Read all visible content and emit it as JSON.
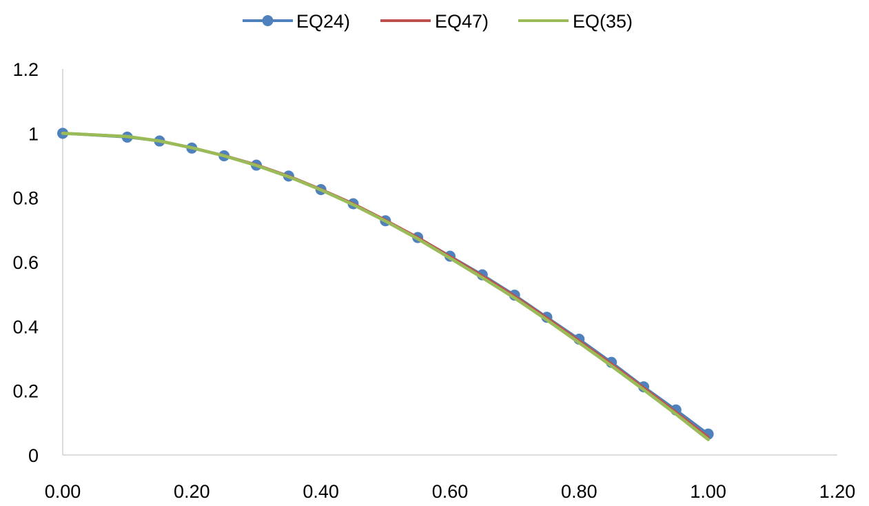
{
  "chart_data": {
    "type": "line",
    "title": "",
    "xlabel": "",
    "ylabel": "",
    "xlim": [
      0,
      1.2
    ],
    "ylim": [
      0,
      1.2
    ],
    "x_ticks": [
      0,
      0.2,
      0.4,
      0.6,
      0.8,
      1.0,
      1.2
    ],
    "x_tick_labels": [
      "0.00",
      "0.20",
      "0.40",
      "0.60",
      "0.80",
      "1.00",
      "1.20"
    ],
    "y_ticks": [
      0,
      0.2,
      0.4,
      0.6,
      0.8,
      1.0,
      1.2
    ],
    "y_tick_labels": [
      "0",
      "0.2",
      "0.4",
      "0.6",
      "0.8",
      "1",
      "1.2"
    ],
    "grid": false,
    "legend_position": "top-center",
    "series": [
      {
        "name": "EQ24)",
        "color": "#4F81BD",
        "marker": "circle",
        "x": [
          0.0,
          0.1,
          0.15,
          0.2,
          0.25,
          0.3,
          0.35,
          0.4,
          0.45,
          0.5,
          0.55,
          0.6,
          0.65,
          0.7,
          0.75,
          0.8,
          0.85,
          0.9,
          0.95,
          1.0
        ],
        "y": [
          1.0,
          0.988,
          0.976,
          0.954,
          0.93,
          0.901,
          0.867,
          0.825,
          0.781,
          0.728,
          0.676,
          0.618,
          0.56,
          0.497,
          0.428,
          0.36,
          0.288,
          0.212,
          0.14,
          0.065
        ]
      },
      {
        "name": "EQ47)",
        "color": "#C0504D",
        "marker": "none",
        "x": [
          0.0,
          0.1,
          0.15,
          0.2,
          0.25,
          0.3,
          0.35,
          0.4,
          0.45,
          0.5,
          0.55,
          0.6,
          0.65,
          0.7,
          0.75,
          0.8,
          0.85,
          0.9,
          0.95,
          1.0
        ],
        "y": [
          1.0,
          0.99,
          0.976,
          0.955,
          0.931,
          0.902,
          0.867,
          0.826,
          0.781,
          0.73,
          0.676,
          0.617,
          0.557,
          0.494,
          0.426,
          0.355,
          0.283,
          0.209,
          0.133,
          0.055
        ]
      },
      {
        "name": "EQ(35)",
        "color": "#9BBB59",
        "marker": "none",
        "x": [
          0.0,
          0.1,
          0.15,
          0.2,
          0.25,
          0.3,
          0.35,
          0.4,
          0.45,
          0.5,
          0.55,
          0.6,
          0.65,
          0.7,
          0.75,
          0.8,
          0.85,
          0.9,
          0.95,
          1.0
        ],
        "y": [
          1.0,
          0.99,
          0.976,
          0.955,
          0.93,
          0.9,
          0.865,
          0.824,
          0.778,
          0.727,
          0.672,
          0.612,
          0.551,
          0.488,
          0.42,
          0.349,
          0.277,
          0.203,
          0.127,
          0.048
        ]
      }
    ]
  }
}
